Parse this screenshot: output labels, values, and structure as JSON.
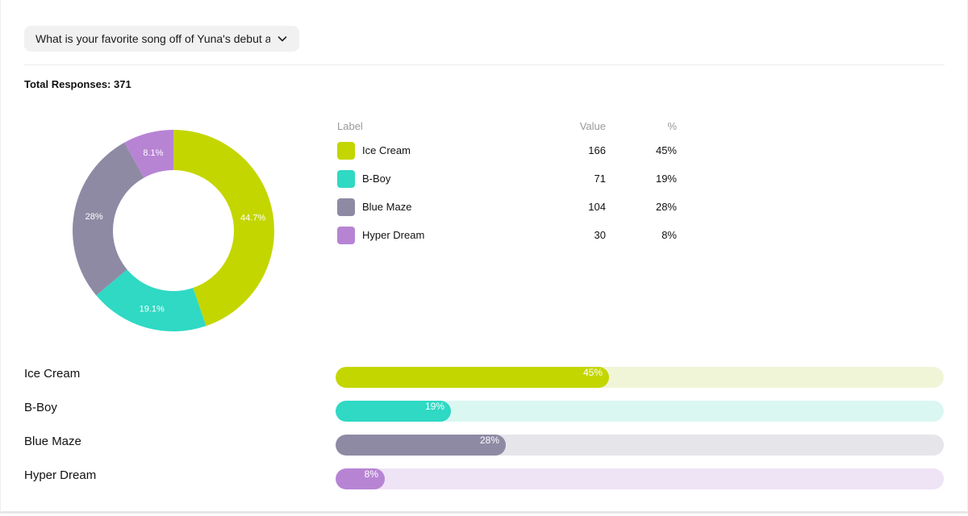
{
  "question": {
    "text": "What is your favorite song off of Yuna's debut a"
  },
  "summary": {
    "total_label": "Total Responses: 371"
  },
  "table": {
    "headers": {
      "label": "Label",
      "value": "Value",
      "percent": "%"
    },
    "rows": [
      {
        "label": "Ice Cream",
        "value": "166",
        "percent": "45%",
        "color": "#c4d600"
      },
      {
        "label": "B-Boy",
        "value": "71",
        "percent": "19%",
        "color": "#2fd9c4"
      },
      {
        "label": "Blue Maze",
        "value": "104",
        "percent": "28%",
        "color": "#8e8aa4"
      },
      {
        "label": "Hyper Dream",
        "value": "30",
        "percent": "8%",
        "color": "#b784d4"
      }
    ]
  },
  "bars": [
    {
      "label": "Ice Cream",
      "percent_label": "45%",
      "fraction": 0.45,
      "color": "#c4d600",
      "track": "#f1f5d8"
    },
    {
      "label": "B-Boy",
      "percent_label": "19%",
      "fraction": 0.19,
      "color": "#2fd9c4",
      "track": "#dbf7f2"
    },
    {
      "label": "Blue Maze",
      "percent_label": "28%",
      "fraction": 0.28,
      "color": "#8e8aa4",
      "track": "#e6e5ea"
    },
    {
      "label": "Hyper Dream",
      "percent_label": "8%",
      "fraction": 0.081,
      "color": "#b784d4",
      "track": "#efe3f6"
    }
  ],
  "chart_data": {
    "type": "pie",
    "categories": [
      "Ice Cream",
      "B-Boy",
      "Blue Maze",
      "Hyper Dream"
    ],
    "values": [
      166,
      71,
      104,
      30
    ],
    "slice_labels": [
      "44.7%",
      "19.1%",
      "28%",
      "8.1%"
    ],
    "colors": [
      "#c4d600",
      "#2fd9c4",
      "#8e8aa4",
      "#b784d4"
    ],
    "title": "",
    "donut": true
  }
}
